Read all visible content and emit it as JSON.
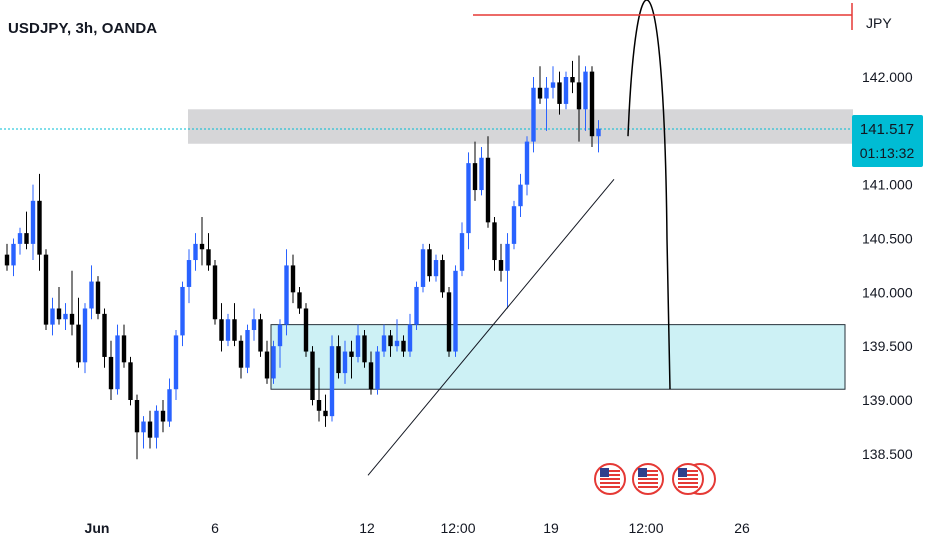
{
  "header": {
    "title": "USDJPY, 3h, OANDA"
  },
  "currency_label": "JPY",
  "price_tag": {
    "price": "141.517",
    "countdown": "01:13:32"
  },
  "colors": {
    "up": "#2962ff",
    "down": "#000000",
    "support_zone": "#cdf1f5",
    "resistance_zone": "#d6d6d8",
    "target_line": "#e53935",
    "price_tag_bg": "#00bcd4",
    "last_price_line": "#00bcd4"
  },
  "event_icons": [
    "us-flag-icon",
    "us-flag-icon",
    "us-flag-icon"
  ],
  "chart_data": {
    "type": "candlestick",
    "title": "USDJPY, 3h, OANDA",
    "ylim": [
      138.1,
      142.85
    ],
    "y_ticks": [
      "142.000",
      "141.000",
      "140.500",
      "140.000",
      "139.500",
      "139.000",
      "138.500"
    ],
    "x_ticks": [
      "Jun",
      "6",
      "12",
      "12:00",
      "19",
      "12:00",
      "26"
    ],
    "last_price": 141.517,
    "zones": [
      {
        "name": "resistance",
        "low": 141.38,
        "high": 141.7
      },
      {
        "name": "support",
        "low": 139.1,
        "high": 139.7
      }
    ],
    "target_level": 142.85,
    "trendline": [
      [
        139.4,
        138.3
      ],
      [
        141.25,
        141.05
      ]
    ],
    "projection": {
      "from": 141.45,
      "peak": 142.9,
      "to": 139.1
    },
    "ohlc": [
      [
        140.35,
        140.45,
        140.2,
        140.25
      ],
      [
        140.25,
        140.5,
        140.15,
        140.45
      ],
      [
        140.45,
        140.6,
        140.35,
        140.55
      ],
      [
        140.55,
        140.75,
        140.4,
        140.45
      ],
      [
        140.45,
        141.0,
        140.3,
        140.85
      ],
      [
        140.85,
        141.1,
        140.2,
        140.35
      ],
      [
        140.35,
        140.4,
        139.65,
        139.7
      ],
      [
        139.7,
        139.95,
        139.6,
        139.85
      ],
      [
        139.85,
        140.05,
        139.7,
        139.75
      ],
      [
        139.75,
        139.9,
        139.65,
        139.8
      ],
      [
        139.8,
        140.2,
        139.6,
        139.7
      ],
      [
        139.7,
        139.95,
        139.3,
        139.35
      ],
      [
        139.35,
        139.9,
        139.25,
        139.85
      ],
      [
        139.85,
        140.25,
        139.75,
        140.1
      ],
      [
        140.1,
        140.15,
        139.75,
        139.8
      ],
      [
        139.8,
        139.85,
        139.3,
        139.4
      ],
      [
        139.4,
        139.55,
        139.0,
        139.1
      ],
      [
        139.1,
        139.7,
        139.05,
        139.6
      ],
      [
        139.6,
        139.7,
        139.3,
        139.35
      ],
      [
        139.35,
        139.4,
        138.95,
        139.0
      ],
      [
        139.0,
        139.05,
        138.45,
        138.7
      ],
      [
        138.7,
        138.85,
        138.55,
        138.8
      ],
      [
        138.8,
        138.9,
        138.55,
        138.65
      ],
      [
        138.65,
        138.95,
        138.55,
        138.9
      ],
      [
        138.9,
        139.0,
        138.7,
        138.8
      ],
      [
        138.8,
        139.2,
        138.75,
        139.1
      ],
      [
        139.1,
        139.65,
        139.0,
        139.6
      ],
      [
        139.6,
        140.1,
        139.5,
        140.05
      ],
      [
        140.05,
        140.4,
        139.9,
        140.3
      ],
      [
        140.3,
        140.55,
        140.2,
        140.45
      ],
      [
        140.45,
        140.7,
        140.25,
        140.4
      ],
      [
        140.4,
        140.55,
        140.2,
        140.25
      ],
      [
        140.25,
        140.3,
        139.7,
        139.75
      ],
      [
        139.75,
        139.9,
        139.45,
        139.55
      ],
      [
        139.55,
        139.8,
        139.5,
        139.75
      ],
      [
        139.75,
        139.9,
        139.5,
        139.55
      ],
      [
        139.55,
        139.6,
        139.2,
        139.3
      ],
      [
        139.3,
        139.7,
        139.25,
        139.65
      ],
      [
        139.65,
        139.85,
        139.55,
        139.75
      ],
      [
        139.75,
        139.8,
        139.4,
        139.45
      ],
      [
        139.45,
        139.55,
        139.15,
        139.2
      ],
      [
        139.2,
        139.55,
        139.15,
        139.5
      ],
      [
        139.5,
        139.75,
        139.3,
        139.7
      ],
      [
        139.7,
        140.4,
        139.6,
        140.25
      ],
      [
        140.25,
        140.35,
        139.9,
        140.0
      ],
      [
        140.0,
        140.05,
        139.8,
        139.85
      ],
      [
        139.85,
        139.9,
        139.4,
        139.45
      ],
      [
        139.45,
        139.5,
        138.95,
        139.0
      ],
      [
        139.0,
        139.3,
        138.8,
        138.9
      ],
      [
        138.9,
        139.05,
        138.75,
        138.85
      ],
      [
        138.85,
        139.6,
        138.8,
        139.5
      ],
      [
        139.5,
        139.6,
        139.2,
        139.25
      ],
      [
        139.25,
        139.55,
        139.15,
        139.45
      ],
      [
        139.45,
        139.55,
        139.2,
        139.4
      ],
      [
        139.4,
        139.7,
        139.35,
        139.6
      ],
      [
        139.6,
        139.65,
        139.3,
        139.35
      ],
      [
        139.35,
        139.45,
        139.05,
        139.1
      ],
      [
        139.1,
        139.5,
        139.05,
        139.45
      ],
      [
        139.45,
        139.7,
        139.4,
        139.6
      ],
      [
        139.6,
        139.65,
        139.4,
        139.5
      ],
      [
        139.5,
        139.75,
        139.45,
        139.55
      ],
      [
        139.55,
        139.6,
        139.4,
        139.45
      ],
      [
        139.45,
        139.8,
        139.4,
        139.7
      ],
      [
        139.7,
        140.1,
        139.65,
        140.05
      ],
      [
        140.05,
        140.45,
        140.0,
        140.4
      ],
      [
        140.4,
        140.45,
        140.1,
        140.15
      ],
      [
        140.15,
        140.35,
        140.1,
        140.3
      ],
      [
        140.3,
        140.35,
        139.95,
        140.0
      ],
      [
        140.0,
        140.05,
        139.4,
        139.45
      ],
      [
        139.45,
        140.25,
        139.4,
        140.2
      ],
      [
        140.2,
        140.65,
        140.15,
        140.55
      ],
      [
        140.55,
        141.3,
        140.4,
        141.2
      ],
      [
        141.2,
        141.4,
        140.85,
        140.95
      ],
      [
        140.95,
        141.35,
        140.9,
        141.25
      ],
      [
        141.25,
        141.45,
        140.6,
        140.65
      ],
      [
        140.65,
        140.7,
        140.2,
        140.3
      ],
      [
        140.3,
        140.45,
        140.1,
        140.2
      ],
      [
        140.2,
        140.55,
        139.85,
        140.45
      ],
      [
        140.45,
        140.85,
        140.4,
        140.8
      ],
      [
        140.8,
        141.1,
        140.7,
        141.0
      ],
      [
        141.0,
        141.45,
        140.9,
        141.4
      ],
      [
        141.4,
        142.0,
        141.3,
        141.9
      ],
      [
        141.9,
        142.1,
        141.75,
        141.8
      ],
      [
        141.8,
        142.0,
        141.5,
        141.9
      ],
      [
        141.9,
        142.1,
        141.8,
        141.95
      ],
      [
        141.95,
        142.05,
        141.65,
        141.75
      ],
      [
        141.75,
        142.05,
        141.7,
        142.0
      ],
      [
        142.0,
        142.15,
        141.85,
        141.95
      ],
      [
        141.95,
        142.2,
        141.4,
        141.7
      ],
      [
        141.7,
        142.1,
        141.5,
        142.05
      ],
      [
        142.05,
        142.1,
        141.35,
        141.45
      ],
      [
        141.45,
        141.6,
        141.3,
        141.52
      ]
    ]
  }
}
